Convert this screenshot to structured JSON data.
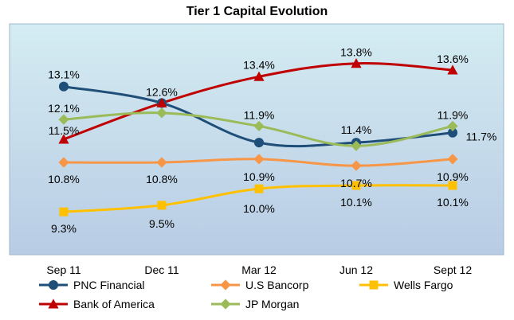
{
  "chart_data": {
    "type": "line",
    "title": "Tier 1 Capital Evolution",
    "categories": [
      "Sep 11",
      "Dec 11",
      "Mar 12",
      "Jun 12",
      "Sept 12"
    ],
    "ylim": [
      8,
      15
    ],
    "grid": false,
    "legend_position": "bottom",
    "series": [
      {
        "name": "PNC Financial",
        "color": "#1f4e79",
        "marker": "circle",
        "values": [
          13.1,
          12.6,
          11.4,
          11.4,
          11.7
        ],
        "labels": [
          "13.1%",
          "12.6%",
          "",
          "11.4%",
          "11.7%"
        ]
      },
      {
        "name": "U.S Bancorp",
        "color": "#f79646",
        "marker": "diamond",
        "values": [
          10.8,
          10.8,
          10.9,
          10.7,
          10.9
        ],
        "labels": [
          "10.8%",
          "10.8%",
          "10.9%",
          "10.7%",
          "10.9%"
        ]
      },
      {
        "name": "Wells Fargo",
        "color": "#ffc000",
        "marker": "square",
        "values": [
          9.3,
          9.5,
          10.0,
          10.1,
          10.1
        ],
        "labels": [
          "9.3%",
          "9.5%",
          "10.0%",
          "10.1%",
          "10.1%"
        ]
      },
      {
        "name": "Bank of America",
        "color": "#c00000",
        "marker": "triangle",
        "values": [
          11.5,
          12.6,
          13.4,
          13.8,
          13.6
        ],
        "labels": [
          "11.5%",
          "",
          "13.4%",
          "13.8%",
          "13.6%"
        ]
      },
      {
        "name": "JP Morgan",
        "color": "#9bbb59",
        "marker": "diamond",
        "values": [
          12.1,
          12.3,
          11.9,
          11.3,
          11.9
        ],
        "labels": [
          "12.1%",
          "",
          "11.9%",
          "",
          "11.9%"
        ]
      }
    ]
  }
}
